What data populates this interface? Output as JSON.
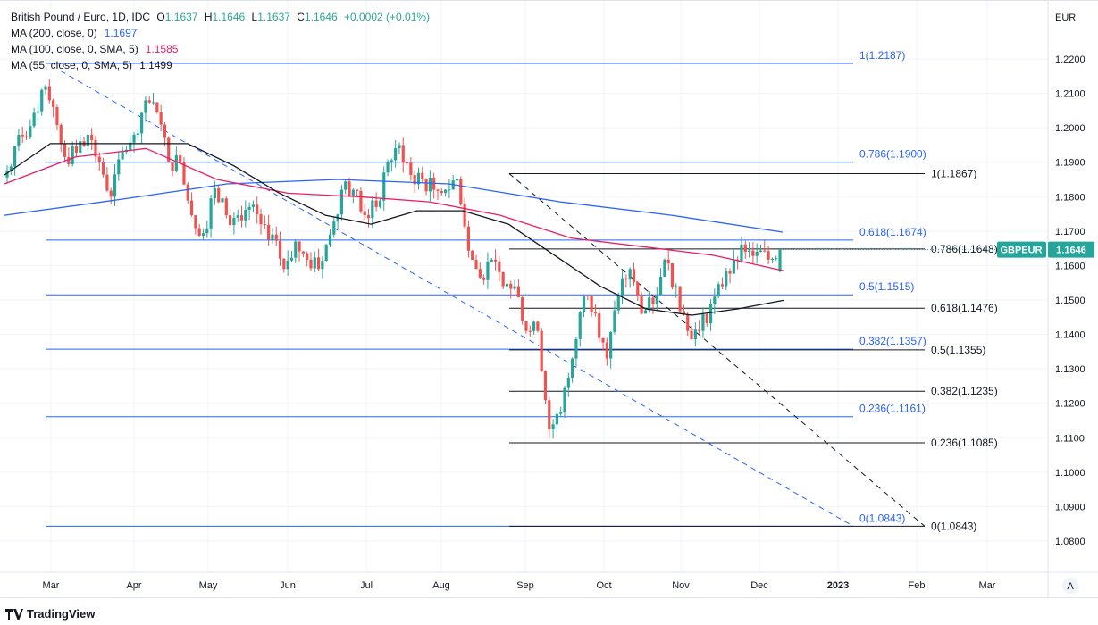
{
  "header": {
    "symbol_title": "British Pound / Euro, 1D, IDC",
    "ohlc": {
      "o_label": "O",
      "o": "1.1637",
      "h_label": "H",
      "h": "1.1646",
      "l_label": "L",
      "l": "1.1637",
      "c_label": "C",
      "c": "1.1646",
      "change": "+0.0002 (+0.01%)"
    },
    "ma_200": {
      "label": "MA (200, close, 0)",
      "value": "1.1697",
      "color": "#2962ff"
    },
    "ma_100": {
      "label": "MA (100, close, 0, SMA, 5)",
      "value": "1.1585",
      "color": "#e91e63"
    },
    "ma_55": {
      "label": "MA (55, close, 0, SMA, 5)",
      "value": "1.1499",
      "color": "#131722"
    }
  },
  "price_axis": {
    "currency": "EUR",
    "ticks": [
      "1.2200",
      "1.2100",
      "1.2000",
      "1.1900",
      "1.1800",
      "1.1700",
      "1.1600",
      "1.1500",
      "1.1400",
      "1.1300",
      "1.1200",
      "1.1100",
      "1.1000",
      "1.0900",
      "1.0800"
    ],
    "auto_button": "A"
  },
  "last_price": {
    "symbol": "GBPEUR",
    "value": "1.1646",
    "color": "#26a69a"
  },
  "time_axis": {
    "labels": [
      "Mar",
      "Apr",
      "May",
      "Jun",
      "Jul",
      "Aug",
      "Sep",
      "Oct",
      "Nov",
      "Dec",
      "2023",
      "Feb",
      "Mar"
    ]
  },
  "footer": {
    "brand": "TradingView"
  },
  "chart_data": {
    "type": "candlestick",
    "x_range": [
      "2022-02-24",
      "2023-03-10"
    ],
    "y_range": [
      1.077,
      1.226
    ],
    "grid": true,
    "up_color": "#26a69a",
    "down_color": "#ef5350",
    "closes_approx": [
      1.1876,
      1.198,
      1.2005,
      1.211,
      1.206,
      1.1915,
      1.1928,
      1.198,
      1.19,
      1.18,
      1.193,
      1.198,
      1.208,
      1.2045,
      1.19,
      1.19,
      1.1746,
      1.1694,
      1.1824,
      1.1746,
      1.1746,
      1.177,
      1.172,
      1.169,
      1.159,
      1.167,
      1.1617,
      1.159,
      1.169,
      1.182,
      1.182,
      1.1746,
      1.177,
      1.19,
      1.195,
      1.1863,
      1.185,
      1.182,
      1.182,
      1.185,
      1.1643,
      1.1565,
      1.1617,
      1.154,
      1.154,
      1.141,
      1.141,
      1.1124,
      1.1176,
      1.133,
      1.1513,
      1.1461,
      1.133,
      1.1513,
      1.159,
      1.146,
      1.1487,
      1.1617,
      1.154,
      1.141,
      1.141,
      1.1487,
      1.154,
      1.1617,
      1.164,
      1.164,
      1.1617,
      1.1646
    ],
    "moving_averages": [
      {
        "name": "MA (200, close, 0)",
        "color": "#2962ff",
        "values_approx": [
          1.1746,
          1.179,
          1.1837,
          1.185,
          1.1837,
          1.1785,
          1.1746,
          1.1697
        ]
      },
      {
        "name": "MA (100, close, 0, SMA, 5)",
        "color": "#e91e63",
        "values_approx": [
          1.1837,
          1.1915,
          1.194,
          1.185,
          1.181,
          1.18,
          1.1785,
          1.1746,
          1.168,
          1.1655,
          1.163,
          1.1585
        ]
      },
      {
        "name": "MA (55, close, 0, SMA, 5)",
        "color": "#131722",
        "values_approx": [
          1.1863,
          1.1954,
          1.1954,
          1.1954,
          1.1954,
          1.189,
          1.181,
          1.1746,
          1.172,
          1.1759,
          1.1759,
          1.172,
          1.163,
          1.154,
          1.1474,
          1.1456,
          1.1474,
          1.1499
        ]
      }
    ],
    "fib_retracement_blue": {
      "color": "#2962ff",
      "levels": [
        {
          "label": "1(1.2187)",
          "price": 1.2187
        },
        {
          "label": "0.786(1.1900)",
          "price": 1.19
        },
        {
          "label": "0.618(1.1674)",
          "price": 1.1674
        },
        {
          "label": "0.5(1.1515)",
          "price": 1.1515
        },
        {
          "label": "0.382(1.1357)",
          "price": 1.1357
        },
        {
          "label": "0.236(1.1161)",
          "price": 1.1161
        },
        {
          "label": "0(1.0843)",
          "price": 1.0843
        }
      ]
    },
    "fib_retracement_black": {
      "color": "#131722",
      "levels": [
        {
          "label": "1(1.1867)",
          "price": 1.1867
        },
        {
          "label": "0.786(1.1648)",
          "price": 1.1648
        },
        {
          "label": "0.618(1.1476)",
          "price": 1.1476
        },
        {
          "label": "0.5(1.1355)",
          "price": 1.1355
        },
        {
          "label": "0.382(1.1235)",
          "price": 1.1235
        },
        {
          "label": "0.236(1.1085)",
          "price": 1.1085
        },
        {
          "label": "0(1.0843)",
          "price": 1.0843
        }
      ]
    },
    "trendlines": [
      {
        "color": "#2962ff",
        "style": "dashed",
        "from": 1.2165,
        "to": 1.0843
      },
      {
        "color": "#131722",
        "style": "dashed",
        "from": 1.1867,
        "to": 1.0843
      }
    ]
  }
}
